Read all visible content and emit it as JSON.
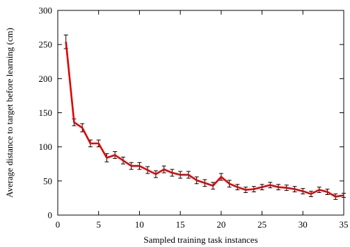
{
  "chart_data": {
    "type": "line",
    "title": "",
    "xlabel": "Sampled training task instances",
    "ylabel": "Average distance to target before learning (cm)",
    "xlim": [
      0,
      35
    ],
    "ylim": [
      0,
      300
    ],
    "xticks": [
      0,
      5,
      10,
      15,
      20,
      25,
      30,
      35
    ],
    "yticks": [
      0,
      50,
      100,
      150,
      200,
      250,
      300
    ],
    "grid": false,
    "legend": "none",
    "line_color": "#e00000",
    "error_bar_color": "#000000",
    "series": [
      {
        "x": [
          1,
          2,
          3,
          4,
          5,
          6,
          7,
          8,
          9,
          10,
          11,
          12,
          13,
          14,
          15,
          16,
          17,
          18,
          19,
          20,
          21,
          22,
          23,
          24,
          25,
          26,
          27,
          28,
          29,
          30,
          31,
          32,
          33,
          34,
          35
        ],
        "y": [
          254,
          136,
          128,
          105,
          105,
          84,
          88,
          80,
          72,
          72,
          66,
          60,
          67,
          62,
          59,
          59,
          51,
          47,
          43,
          56,
          46,
          41,
          37,
          38,
          41,
          44,
          41,
          40,
          38,
          35,
          31,
          37,
          34,
          27,
          29
        ],
        "err": [
          10,
          5,
          6,
          5,
          5,
          6,
          5,
          5,
          5,
          5,
          5,
          5,
          5,
          5,
          5,
          5,
          5,
          5,
          5,
          5,
          5,
          4,
          4,
          4,
          4,
          4,
          4,
          4,
          4,
          4,
          4,
          4,
          4,
          4,
          3
        ]
      }
    ]
  }
}
